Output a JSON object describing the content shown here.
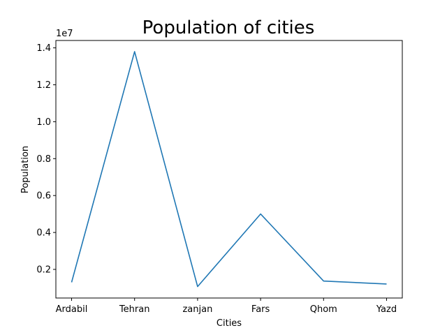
{
  "chart_data": {
    "type": "line",
    "title": "Population of cities",
    "xlabel": "Cities",
    "ylabel": "Population",
    "y_offset_label": "1e7",
    "categories": [
      "Ardabil",
      "Tehran",
      "zanjan",
      "Fars",
      "Qhom",
      "Yazd"
    ],
    "series": [
      {
        "name": "Population",
        "values": [
          1300000,
          13800000,
          1070000,
          5000000,
          1370000,
          1210000
        ]
      }
    ],
    "ylim": [
      450000,
      14400000
    ],
    "yticks": [
      2000000,
      4000000,
      6000000,
      8000000,
      10000000,
      12000000,
      14000000
    ],
    "ytick_labels": [
      "0.2",
      "0.4",
      "0.6",
      "0.8",
      "1.0",
      "1.2",
      "1.4"
    ],
    "grid": false,
    "line_color": "#1f77b4"
  }
}
